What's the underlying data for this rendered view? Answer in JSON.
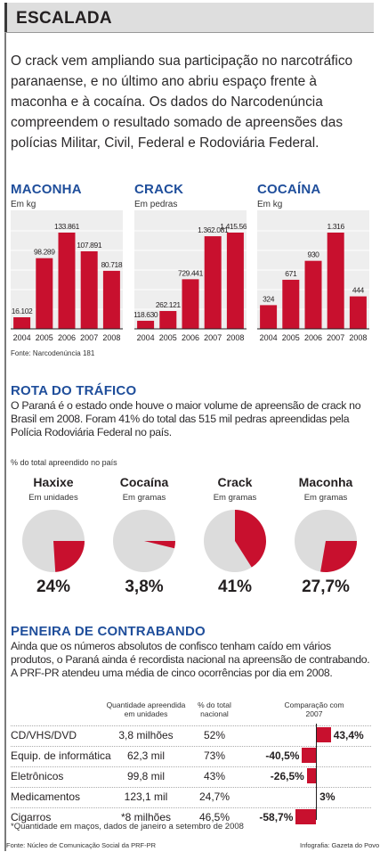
{
  "header": {
    "title": "ESCALADA"
  },
  "intro": "O crack vem ampliando sua participação no narcotráfico paranaense, e no último ano abriu espaço frente à maconha e à cocaína. Os dados do Narcodenúncia compreendem o resultado somado de apreensões das polícias Militar, Civil, Federal e Rodoviária Federal.",
  "colors": {
    "bar": "#c8102e",
    "pie_bg": "#dcdcdc",
    "title_blue": "#1f4e9b"
  },
  "bar_source": "Fonte: Narcodenúncia 181",
  "chart_data": [
    {
      "type": "bar",
      "title": "MACONHA",
      "unit": "Em kg",
      "categories": [
        "2004",
        "2005",
        "2006",
        "2007",
        "2008"
      ],
      "values": [
        16102,
        98289,
        133861,
        107891,
        80718
      ],
      "labels": [
        "16.102",
        "98.289",
        "133.861",
        "107.891",
        "80.718"
      ]
    },
    {
      "type": "bar",
      "title": "CRACK",
      "unit": "Em pedras",
      "categories": [
        "2004",
        "2005",
        "2006",
        "2007",
        "2008"
      ],
      "values": [
        118630,
        262121,
        729441,
        1362081,
        1415562
      ],
      "labels": [
        "118.630",
        "262.121",
        "729.441",
        "1.362.081",
        "1.415.562"
      ]
    },
    {
      "type": "bar",
      "title": "COCAÍNA",
      "unit": "Em kg",
      "categories": [
        "2004",
        "2005",
        "2006",
        "2007",
        "2008"
      ],
      "values": [
        324,
        671,
        930,
        1316,
        444
      ],
      "labels": [
        "324",
        "671",
        "930",
        "1.316",
        "444"
      ]
    },
    {
      "type": "pie",
      "title": "ROTA DO TRÁFICO",
      "note": "% do total apreendido no país",
      "slices": [
        {
          "name": "Haxixe",
          "unit": "Em unidades",
          "value": 24.0,
          "label": "24%"
        },
        {
          "name": "Cocaína",
          "unit": "Em gramas",
          "value": 3.8,
          "label": "3,8%"
        },
        {
          "name": "Crack",
          "unit": "Em gramas",
          "value": 41.0,
          "label": "41%"
        },
        {
          "name": "Maconha",
          "unit": "Em gramas",
          "value": 27.7,
          "label": "27,7%"
        }
      ]
    },
    {
      "type": "table",
      "title": "PENEIRA DE CONTRABANDO",
      "headers": [
        "Quantidade apreendida em unidades",
        "% do total nacional",
        "Comparação com 2007"
      ],
      "rows": [
        {
          "label": "CD/VHS/DVD",
          "qty": "3,8 milhões",
          "pct": "52%",
          "change": 43.4,
          "change_label": "43,4%"
        },
        {
          "label": "Equip. de informática",
          "qty": "62,3 mil",
          "pct": "73%",
          "change": -40.5,
          "change_label": "-40,5%"
        },
        {
          "label": "Eletrônicos",
          "qty": "99,8 mil",
          "pct": "43%",
          "change": -26.5,
          "change_label": "-26,5%"
        },
        {
          "label": "Medicamentos",
          "qty": "123,1 mil",
          "pct": "24,7%",
          "change": 3,
          "change_label": "3%"
        },
        {
          "label": "Cigarros",
          "qty": "*8 milhões",
          "pct": "46,5%",
          "change": -58.7,
          "change_label": "-58,7%"
        }
      ]
    }
  ],
  "rota": {
    "title": "ROTA DO TRÁFICO",
    "text": "O Paraná é o estado onde houve o maior volume de apreensão de crack no Brasil em 2008. Foram 41% do total das 515 mil pedras apreendidas pela Polícia Rodoviária Federal no país.",
    "note": "% do total apreendido no país"
  },
  "peneira": {
    "title": "PENEIRA DE CONTRABANDO",
    "text": "Ainda que os números absolutos de confisco tenham caído em vários produtos, o Paraná ainda é recordista nacional na apreensão de contrabando. A PRF-PR atendeu uma média de cinco ocorrências por dia em 2008.",
    "footnote": "*Quantidade em maços, dados de janeiro a setembro de 2008"
  },
  "footer": {
    "source": "Fonte: Núcleo de Comunicação Social da PRF-PR",
    "credit": "Infografia: Gazeta do Povo"
  }
}
